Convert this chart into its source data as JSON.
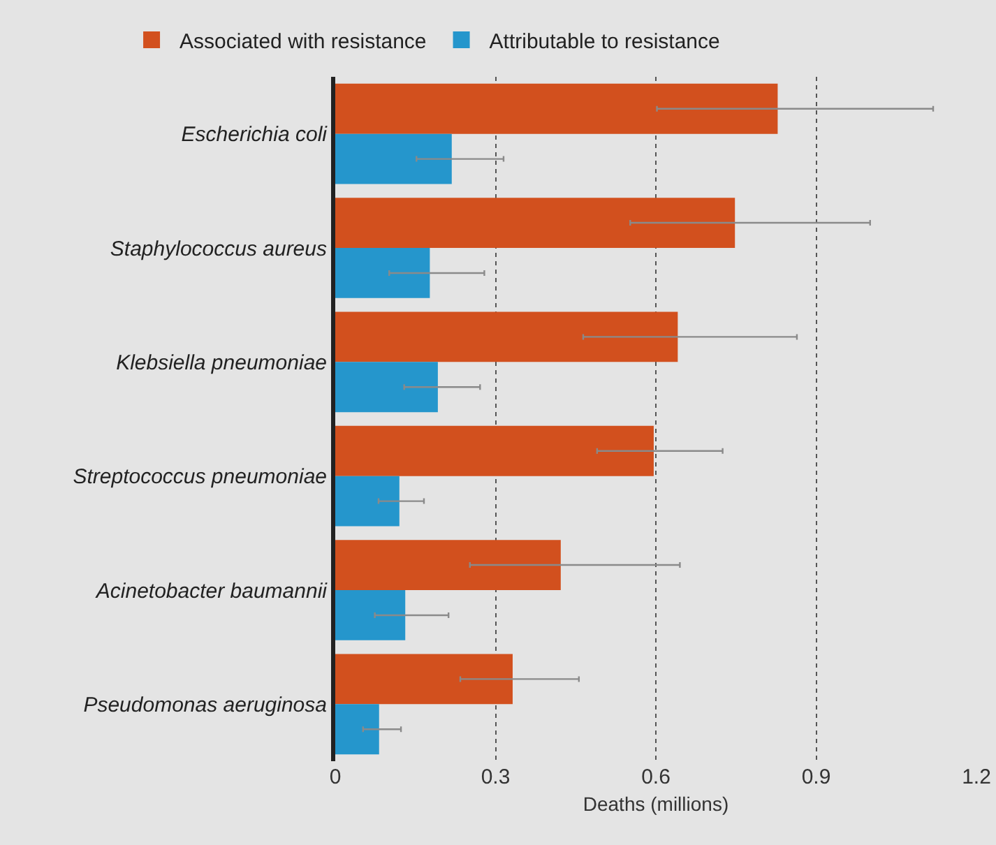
{
  "chart_data": {
    "type": "bar",
    "orientation": "horizontal",
    "xlabel": "Deaths (millions)",
    "categories": [
      "Escherichia coli",
      "Staphylococcus aureus",
      "Klebsiella pneumoniae",
      "Streptococcus pneumoniae",
      "Acinetobacter baumannii",
      "Pseudomonas aeruginosa"
    ],
    "series": [
      {
        "name": "Associated with resistance",
        "color": "#d2501e",
        "values": [
          0.828,
          0.748,
          0.641,
          0.596,
          0.422,
          0.332
        ],
        "errors": [
          [
            0.602,
            1.119
          ],
          [
            0.552,
            1.001
          ],
          [
            0.464,
            0.864
          ],
          [
            0.49,
            0.725
          ],
          [
            0.252,
            0.645
          ],
          [
            0.234,
            0.456
          ]
        ]
      },
      {
        "name": "Attributable to resistance",
        "color": "#2596cc",
        "values": [
          0.218,
          0.177,
          0.192,
          0.12,
          0.131,
          0.082
        ],
        "errors": [
          [
            0.152,
            0.315
          ],
          [
            0.101,
            0.279
          ],
          [
            0.129,
            0.271
          ],
          [
            0.081,
            0.166
          ],
          [
            0.074,
            0.212
          ],
          [
            0.052,
            0.123
          ]
        ]
      }
    ],
    "xlim": [
      0,
      1.2
    ],
    "xticks": [
      0,
      0.3,
      0.6,
      0.9,
      1.2
    ],
    "grid": "x",
    "legend": "top left"
  }
}
